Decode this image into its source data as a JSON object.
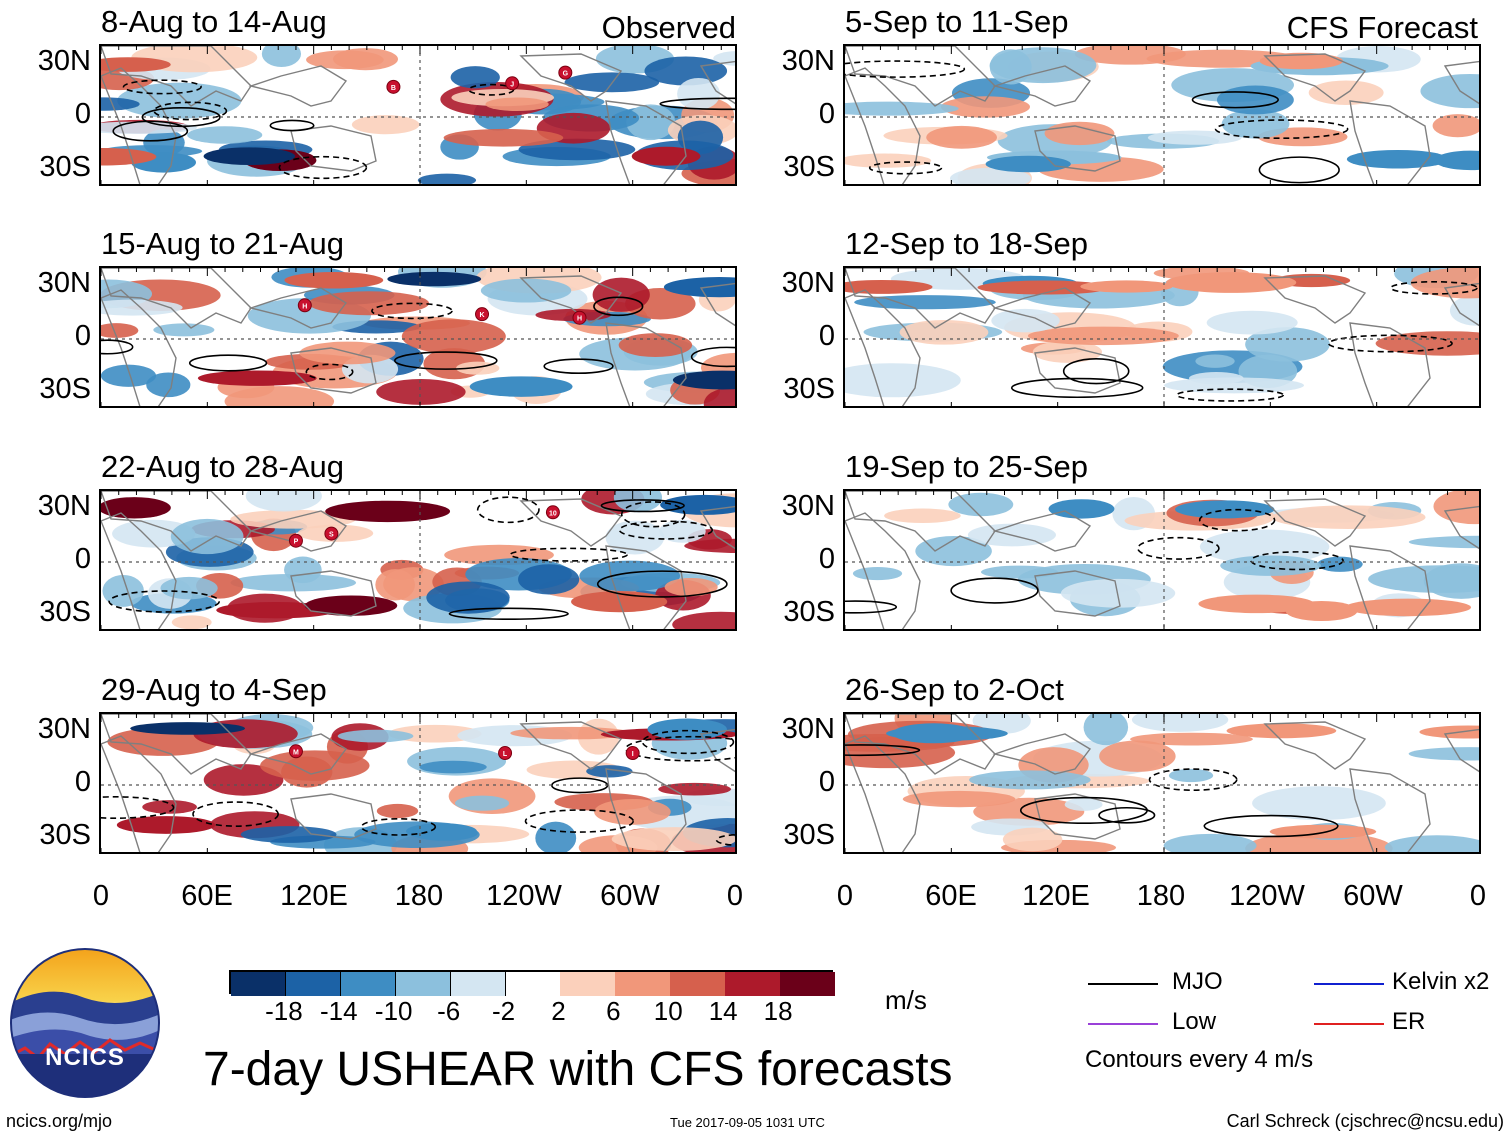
{
  "title": "7-day USHEAR with CFS forecasts",
  "observed_label": "Observed",
  "forecast_label": "CFS Forecast",
  "logo_text": "NCICS",
  "footer": {
    "left": "ncics.org/mjo",
    "center": "Tue 2017-09-05 1031 UTC",
    "right": "Carl Schreck (cjschrec@ncsu.edu)"
  },
  "colorbar": {
    "unit": "m/s",
    "colors": [
      "#0a3068",
      "#1c62a6",
      "#3e8dc3",
      "#8cc0dd",
      "#d4e6f2",
      "#ffffff",
      "#fbd0bb",
      "#f1977a",
      "#d6604d",
      "#ad1a2b",
      "#6b0019"
    ],
    "ticks": [
      "-18",
      "-14",
      "-10",
      "-6",
      "-2",
      "2",
      "6",
      "10",
      "14",
      "18"
    ]
  },
  "legend": {
    "items": [
      {
        "label": "MJO",
        "color": "#000000"
      },
      {
        "label": "Kelvin x2",
        "color": "#1020d0"
      },
      {
        "label": "Low",
        "color": "#9a40d8"
      },
      {
        "label": "ER",
        "color": "#e02020"
      }
    ],
    "note": "Contours every 4 m/s"
  },
  "chart_data": {
    "type": "heatmap",
    "variable": "USHEAR anomaly",
    "units": "m/s",
    "lon_ticks": [
      "0",
      "60E",
      "120E",
      "180",
      "120W",
      "60W",
      "0"
    ],
    "lat_ticks": [
      "30N",
      "0",
      "30S"
    ],
    "lat_range": [
      -40,
      40
    ],
    "lon_range": [
      0,
      360
    ],
    "panels": [
      {
        "column": "Observed",
        "title": "8-Aug to 14-Aug",
        "storms": [
          "B",
          "J",
          "G"
        ]
      },
      {
        "column": "Observed",
        "title": "15-Aug to 21-Aug",
        "storms": [
          "H",
          "K",
          "H"
        ]
      },
      {
        "column": "Observed",
        "title": "22-Aug to 28-Aug",
        "storms": [
          "P",
          "S",
          "10"
        ]
      },
      {
        "column": "Observed",
        "title": "29-Aug to 4-Sep",
        "storms": [
          "M",
          "L",
          "I"
        ]
      },
      {
        "column": "CFS Forecast",
        "title": "5-Sep to 11-Sep",
        "storms": []
      },
      {
        "column": "CFS Forecast",
        "title": "12-Sep to 18-Sep",
        "storms": []
      },
      {
        "column": "CFS Forecast",
        "title": "19-Sep to 25-Sep",
        "storms": []
      },
      {
        "column": "CFS Forecast",
        "title": "26-Sep to 2-Oct",
        "storms": []
      }
    ]
  }
}
